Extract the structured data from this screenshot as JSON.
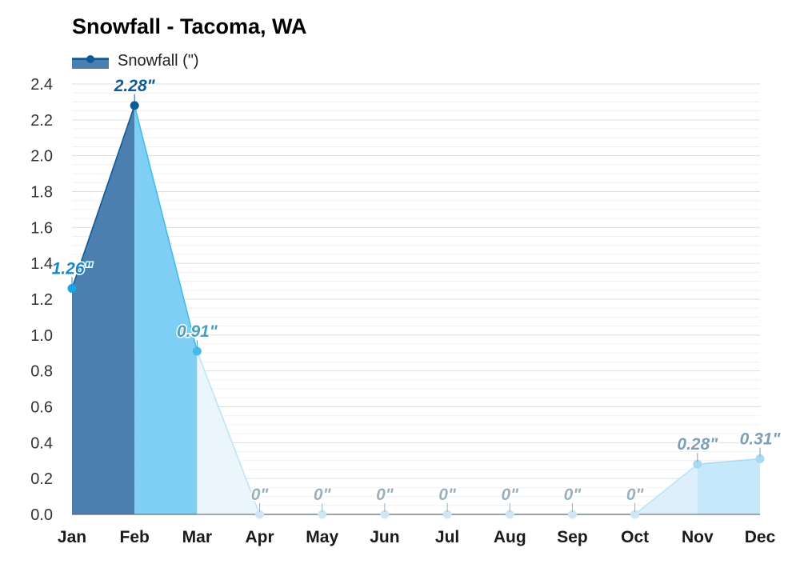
{
  "chart_data": {
    "type": "area",
    "title": "Snowfall - Tacoma, WA",
    "xlabel": "",
    "ylabel": "",
    "categories": [
      "Jan",
      "Feb",
      "Mar",
      "Apr",
      "May",
      "Jun",
      "Jul",
      "Aug",
      "Sep",
      "Oct",
      "Nov",
      "Dec"
    ],
    "series": [
      {
        "name": "Snowfall (\")",
        "values": [
          1.26,
          2.28,
          0.91,
          0,
          0,
          0,
          0,
          0,
          0,
          0,
          0.28,
          0.31
        ],
        "data_labels": [
          "1.26\"",
          "2.28\"",
          "0.91\"",
          "0\"",
          "0\"",
          "0\"",
          "0\"",
          "0\"",
          "0\"",
          "0\"",
          "0.28\"",
          "0.31\""
        ]
      }
    ],
    "ylim": [
      0,
      2.4
    ],
    "y_ticks": [
      "0.0",
      "0.2",
      "0.4",
      "0.6",
      "0.8",
      "1.0",
      "1.2",
      "1.4",
      "1.6",
      "1.8",
      "2.0",
      "2.2",
      "2.4"
    ],
    "grid": true,
    "legend_position": "top-left"
  },
  "colors": {
    "background": "#ffffff",
    "grid_major": "#dddddd",
    "grid_minor": "#f0f0f0",
    "axis": "#555555",
    "segment_fills": [
      "#4a7fb0",
      "#7fcff5",
      "#eaf5fc",
      "#ddeffa",
      "#ddeffa",
      "#ddeffa",
      "#ddeffa",
      "#ddeffa",
      "#ddeffa",
      "#ddeffa",
      "#c6e8fb"
    ],
    "segment_lines": [
      "#0f5a96",
      "#44bce9",
      "#bfe3f7",
      "#bfe3f7",
      "#bfe3f7",
      "#bfe3f7",
      "#bfe3f7",
      "#bfe3f7",
      "#bfe3f7",
      "#bfe3f7",
      "#a8dbf7"
    ],
    "point_colors": [
      "#1aa3e8",
      "#0f5a96",
      "#44bce9",
      "#cfe6f4",
      "#cfe6f4",
      "#cfe6f4",
      "#cfe6f4",
      "#cfe6f4",
      "#cfe6f4",
      "#cfe6f4",
      "#a8d8f2",
      "#a8d8f2"
    ],
    "label_colors": [
      "#1a86c8",
      "#0f5a96",
      "#4b9fbf",
      "#9bb0bc",
      "#9bb0bc",
      "#9bb0bc",
      "#9bb0bc",
      "#9bb0bc",
      "#9bb0bc",
      "#9bb0bc",
      "#7c9fb5",
      "#7c9fb5"
    ],
    "legend_fill": "#4a7fb0",
    "legend_line": "#0f5a96"
  }
}
